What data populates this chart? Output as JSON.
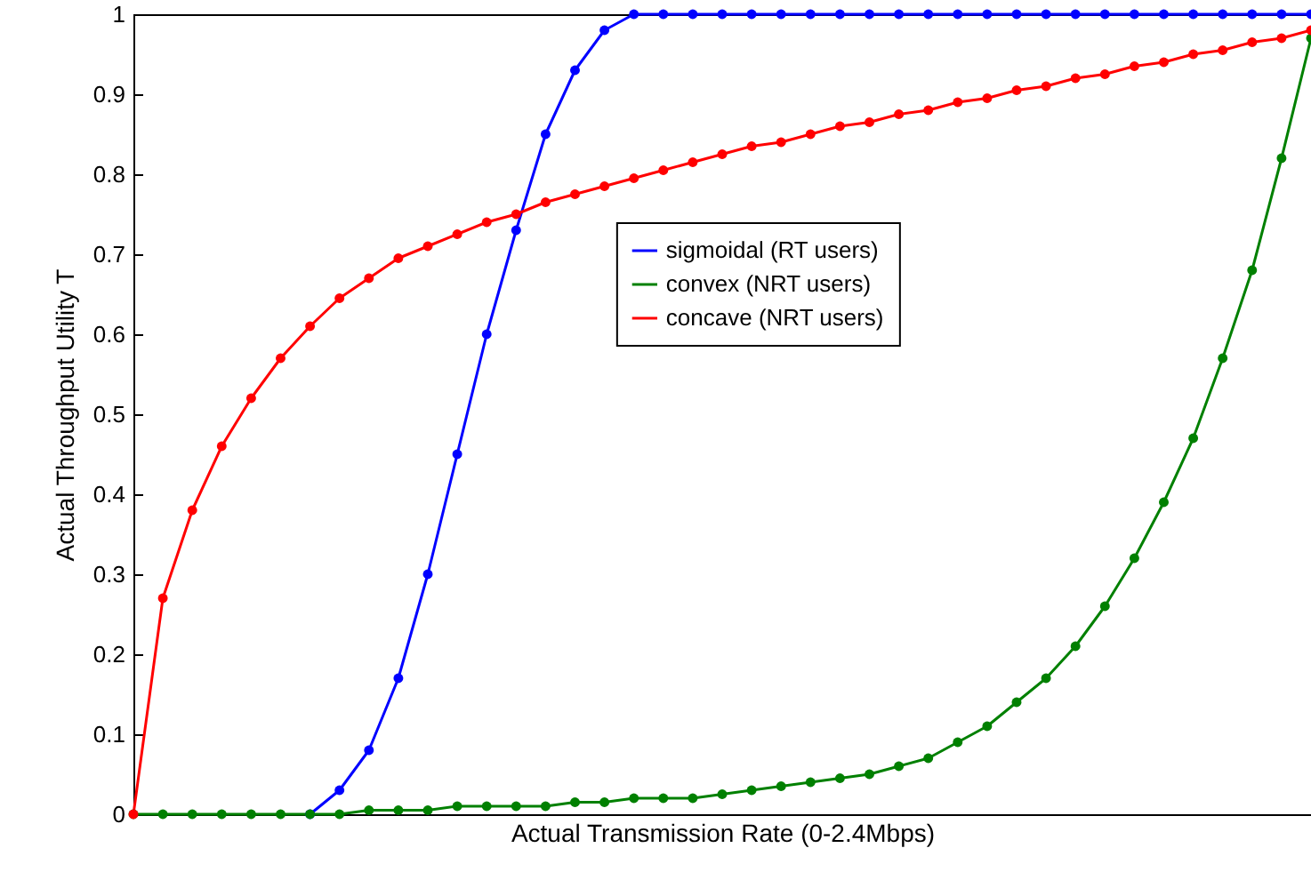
{
  "chart_data": {
    "type": "line",
    "xlabel": "Actual Transmission Rate (0-2.4Mbps)",
    "ylabel": "Actual Throughput Utility T",
    "categories": [
      null,
      null,
      null,
      null,
      null,
      null,
      null,
      null,
      null,
      null,
      null,
      null,
      null,
      null,
      null,
      null,
      null,
      null,
      null,
      null,
      null,
      null,
      null,
      null,
      null,
      null,
      null,
      null,
      null,
      null,
      null,
      null,
      null,
      null,
      null,
      null,
      null,
      null,
      null,
      null,
      null
    ],
    "series": [
      {
        "name": "sigmoidal (RT users)",
        "color": "#0000ff",
        "values": [
          null,
          null,
          null,
          null,
          null,
          null,
          0,
          0.03,
          0.08,
          0.17,
          0.3,
          0.45,
          0.6,
          0.73,
          0.85,
          0.93,
          0.98,
          1,
          1,
          1,
          1,
          1,
          1,
          1,
          1,
          1,
          1,
          1,
          1,
          1,
          1,
          1,
          1,
          1,
          1,
          1,
          1,
          1,
          1,
          1,
          1
        ]
      },
      {
        "name": "convex (NRT users)",
        "color": "#008000",
        "values": [
          0,
          0,
          0,
          0,
          0,
          0,
          0,
          0,
          0.005,
          0.005,
          0.005,
          0.01,
          0.01,
          0.01,
          0.01,
          0.015,
          0.015,
          0.02,
          0.02,
          0.02,
          0.025,
          0.03,
          0.035,
          0.04,
          0.045,
          0.05,
          0.06,
          0.07,
          0.09,
          0.11,
          0.14,
          0.17,
          0.21,
          0.26,
          0.32,
          0.39,
          0.47,
          0.57,
          0.68,
          0.82,
          0.97
        ]
      },
      {
        "name": "concave (NRT users)",
        "color": "#ff0000",
        "values": [
          0,
          0.27,
          0.38,
          0.46,
          0.52,
          0.57,
          0.61,
          0.645,
          0.67,
          0.695,
          0.71,
          0.725,
          0.74,
          0.75,
          0.765,
          0.775,
          0.785,
          0.795,
          0.805,
          0.815,
          0.825,
          0.835,
          0.84,
          0.85,
          0.86,
          0.865,
          0.875,
          0.88,
          0.89,
          0.895,
          0.905,
          0.91,
          0.92,
          0.925,
          0.935,
          0.94,
          0.95,
          0.955,
          0.965,
          0.97,
          0.98
        ]
      }
    ],
    "ylim": [
      0,
      1
    ],
    "yticks": [
      0,
      0.1,
      0.2,
      0.3,
      0.4,
      0.5,
      0.6,
      0.7,
      0.8,
      0.9,
      1
    ],
    "grid": false,
    "legend": "right",
    "marker": "circle",
    "line_style": "solid"
  }
}
